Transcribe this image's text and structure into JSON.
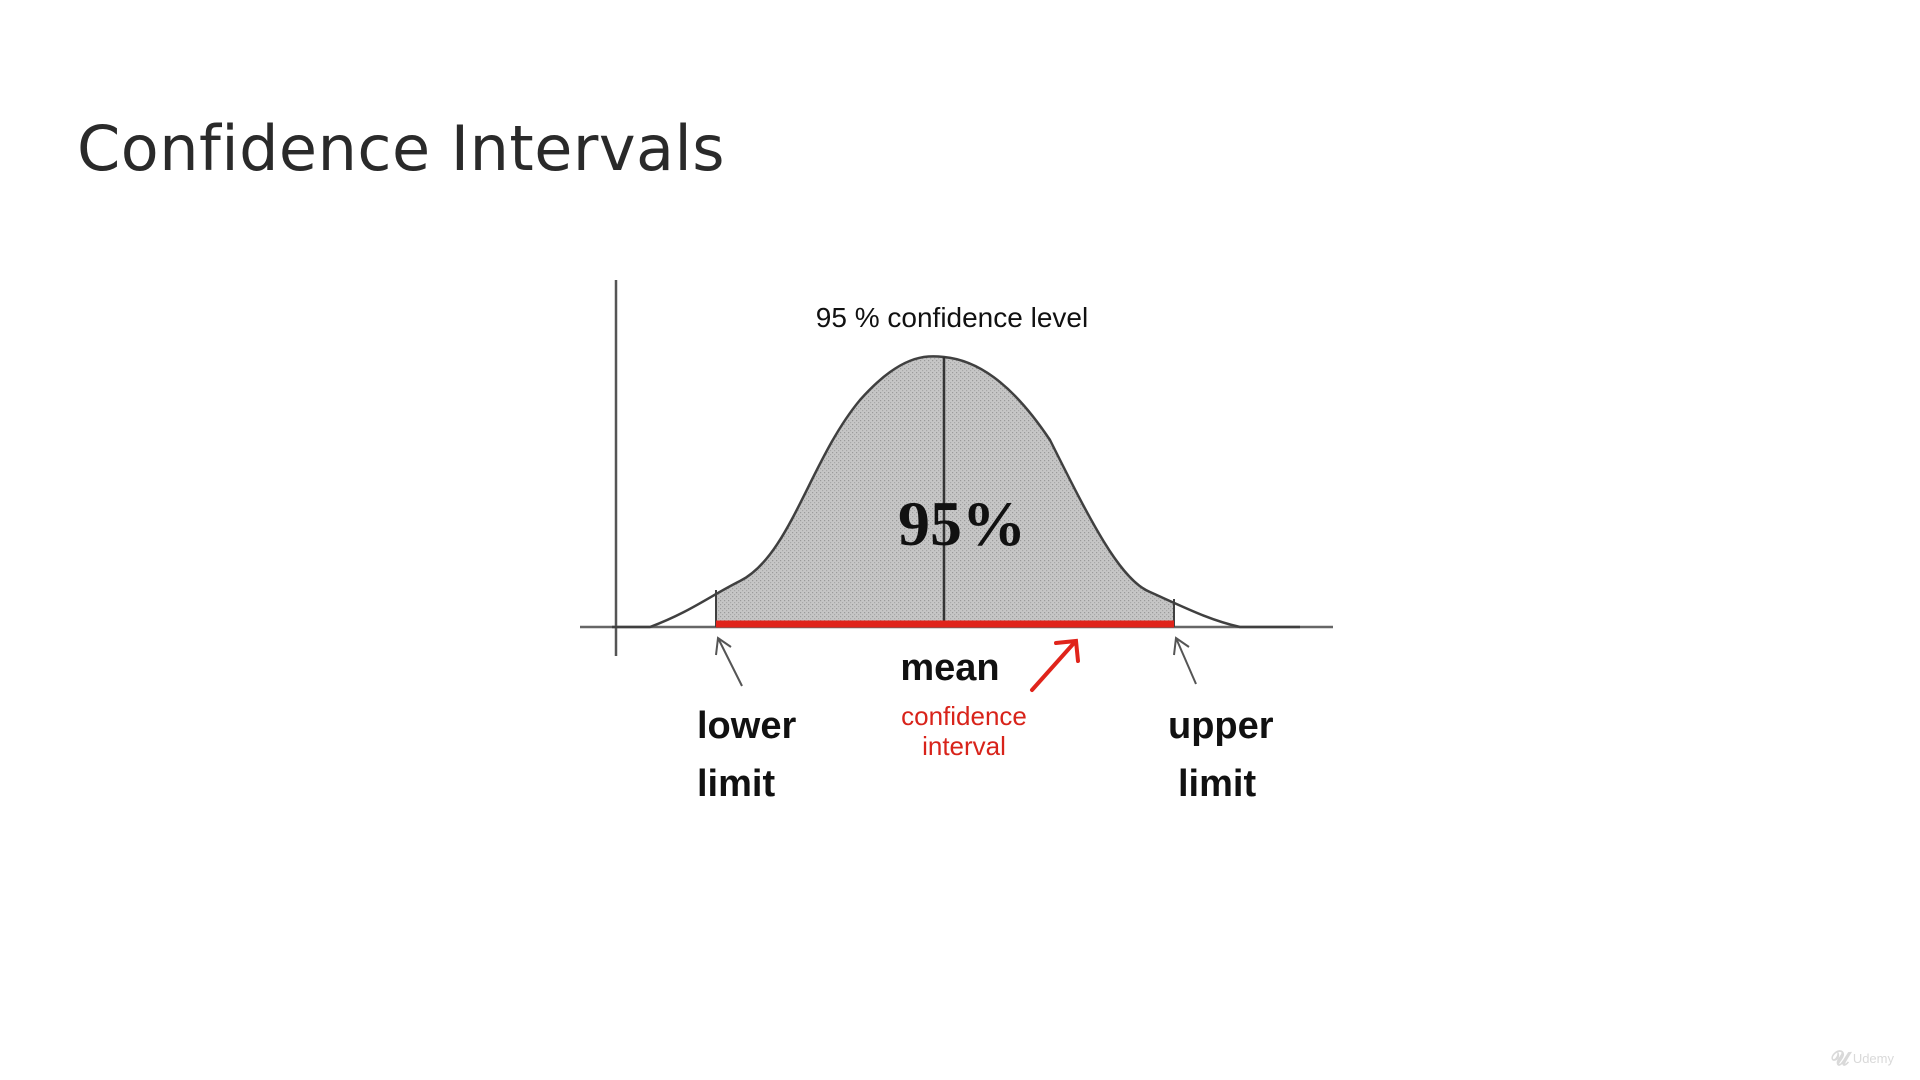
{
  "slide": {
    "title": "Confidence Intervals"
  },
  "diagram": {
    "level_label": "95 % confidence level",
    "center_label": "95%",
    "mean_label": "mean",
    "interval_label_line1": "confidence",
    "interval_label_line2": "interval",
    "lower_limit_line1": "lower",
    "lower_limit_line2": "limit",
    "upper_limit_line1": "upper",
    "upper_limit_line2": "limit"
  },
  "watermark": {
    "text": "Udemy"
  },
  "colors": {
    "interval": "#e0241b",
    "area_fill": "#c8c8c8",
    "stroke": "#404040",
    "text": "#111111"
  }
}
